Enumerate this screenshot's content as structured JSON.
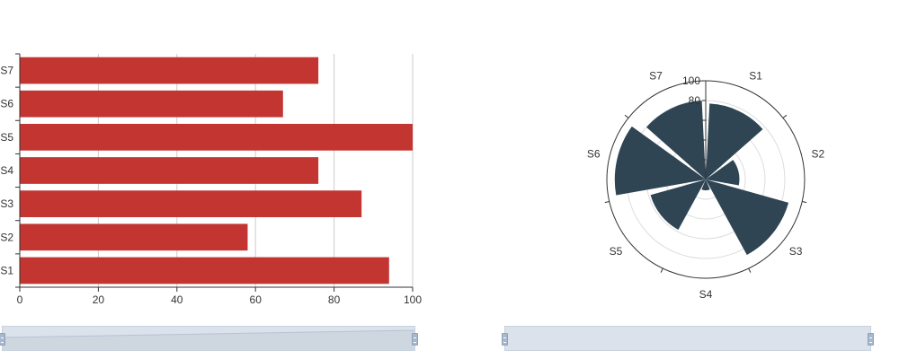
{
  "chart_data": [
    {
      "type": "bar",
      "orientation": "horizontal",
      "categories": [
        "S1",
        "S2",
        "S3",
        "S4",
        "S5",
        "S6",
        "S7"
      ],
      "values": [
        94,
        58,
        87,
        76,
        100,
        67,
        76
      ],
      "title": "",
      "xlabel": "",
      "ylabel": "",
      "xlim": [
        0,
        100
      ],
      "xticks": [
        "0",
        "20",
        "40",
        "60",
        "80",
        "100"
      ],
      "grid": true,
      "color": "#c23531"
    },
    {
      "type": "bar",
      "coordinate": "polar",
      "categories": [
        "S1",
        "S2",
        "S3",
        "S4",
        "S5",
        "S6",
        "S7"
      ],
      "values": [
        77,
        34,
        87,
        11,
        58,
        92,
        80
      ],
      "title": "",
      "rlim": [
        0,
        100
      ],
      "rticks": [
        "80",
        "100"
      ],
      "grid": true,
      "color": "#2f4554"
    }
  ],
  "dataZoom": [
    {
      "name": "left-zoom-slider"
    },
    {
      "name": "right-zoom-slider"
    }
  ]
}
